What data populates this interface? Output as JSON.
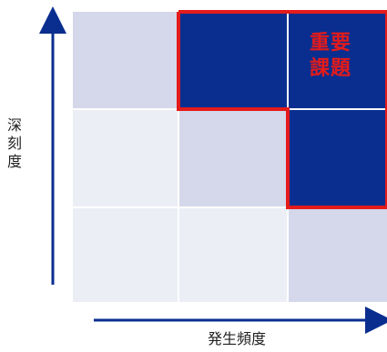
{
  "matrix": {
    "rows": 3,
    "cols": 3,
    "cells": [
      [
        "light",
        "dark",
        "dark"
      ],
      [
        "pale",
        "light",
        "dark"
      ],
      [
        "pale",
        "pale",
        "light"
      ]
    ],
    "highlight_label": "重要\n課題"
  },
  "axes": {
    "y_label": "深\n刻\n度",
    "x_label": "発生頻度"
  },
  "colors": {
    "dark": "#0a2e8f",
    "light": "#d5d8ea",
    "pale": "#eceef5",
    "highlight": "#e31b1b",
    "axis": "#0a2e8f"
  }
}
